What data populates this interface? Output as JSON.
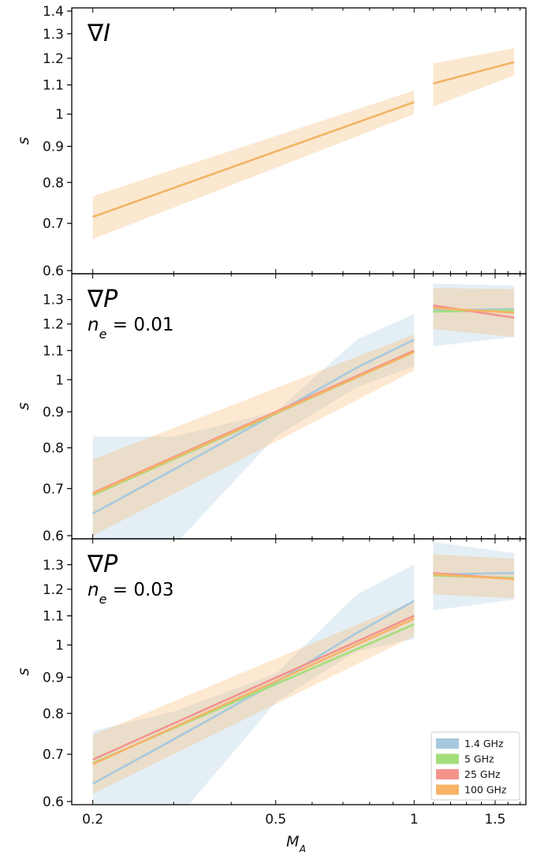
{
  "chart_data": [
    {
      "type": "line",
      "title": "∇I",
      "subtitle": "",
      "xlabel": "M_A",
      "ylabel": "s",
      "x_scale": "log",
      "y_scale": "log",
      "xlim": [
        0.18,
        1.75
      ],
      "ylim": [
        0.6,
        1.4
      ],
      "yticks": [
        0.6,
        0.7,
        0.8,
        0.9,
        1.0,
        1.1,
        1.2,
        1.3,
        1.4
      ],
      "ytick_labels": [
        "0.6",
        "0.7",
        "0.8",
        "0.9",
        "1",
        "1.1",
        "1.2",
        "1.3",
        "1.4"
      ],
      "series": [
        {
          "color": "#f2b366",
          "segments": [
            {
              "x": [
                0.2,
                1.0
              ],
              "y": [
                0.715,
                1.04
              ],
              "band_lo": [
                0.665,
                1.0
              ],
              "band_hi": [
                0.765,
                1.08
              ]
            },
            {
              "x": [
                1.1,
                1.65
              ],
              "y": [
                1.105,
                1.185
              ],
              "band_lo": [
                1.025,
                1.135
              ],
              "band_hi": [
                1.18,
                1.24
              ]
            }
          ]
        }
      ]
    },
    {
      "type": "line",
      "title": "∇P",
      "subtitle": "n_e = 0.01",
      "xlabel": "M_A",
      "ylabel": "s",
      "x_scale": "log",
      "y_scale": "log",
      "xlim": [
        0.18,
        1.75
      ],
      "ylim": [
        0.6,
        1.4
      ],
      "yticks": [
        0.6,
        0.7,
        0.8,
        0.9,
        1.0,
        1.1,
        1.2,
        1.3
      ],
      "ytick_labels": [
        "0.6",
        "0.7",
        "0.8",
        "0.9",
        "1",
        "1.1",
        "1.2",
        "1.3"
      ],
      "series": [
        {
          "name": "1.4 GHz",
          "color": "#a6c9df",
          "segments": [
            {
              "x": [
                0.2,
                0.3,
                0.5,
                0.75,
                1.0
              ],
              "y": [
                0.645,
                0.745,
                0.895,
                1.04,
                1.14
              ],
              "band_lo": [
                0.5,
                0.58,
                0.83,
                0.975,
                1.045
              ],
              "band_hi": [
                0.83,
                0.83,
                0.9,
                1.14,
                1.24
              ]
            },
            {
              "x": [
                1.1,
                1.65
              ],
              "y": [
                1.255,
                1.26
              ],
              "band_lo": [
                1.115,
                1.15
              ],
              "band_hi": [
                1.37,
                1.36
              ]
            }
          ]
        },
        {
          "name": "5 GHz",
          "color": "#a4de7c",
          "segments": [
            {
              "x": [
                0.2,
                1.0
              ],
              "y": [
                0.685,
                1.095
              ]
            },
            {
              "x": [
                1.1,
                1.65
              ],
              "y": [
                1.25,
                1.255
              ]
            }
          ]
        },
        {
          "name": "25 GHz",
          "color": "#f3938c",
          "segments": [
            {
              "x": [
                0.2,
                1.0
              ],
              "y": [
                0.69,
                1.1
              ]
            },
            {
              "x": [
                1.1,
                1.65
              ],
              "y": [
                1.275,
                1.225
              ]
            }
          ]
        },
        {
          "name": "100 GHz",
          "color": "#f7b366",
          "segments": [
            {
              "x": [
                0.2,
                1.0
              ],
              "y": [
                0.688,
                1.095
              ],
              "band_lo": [
                0.6,
                1.03
              ],
              "band_hi": [
                0.77,
                1.16
              ]
            },
            {
              "x": [
                1.1,
                1.65
              ],
              "y": [
                1.265,
                1.245
              ],
              "band_lo": [
                1.18,
                1.15
              ],
              "band_hi": [
                1.35,
                1.345
              ]
            }
          ]
        }
      ]
    },
    {
      "type": "line",
      "title": "∇P",
      "subtitle": "n_e = 0.03",
      "xlabel": "M_A",
      "ylabel": "s",
      "x_scale": "log",
      "y_scale": "log",
      "xlim": [
        0.18,
        1.75
      ],
      "ylim": [
        0.6,
        1.4
      ],
      "xticks": [
        0.2,
        0.5,
        1.0,
        1.5
      ],
      "xtick_labels": [
        "0.2",
        "0.5",
        "1",
        "1.5"
      ],
      "yticks": [
        0.6,
        0.7,
        0.8,
        0.9,
        1.0,
        1.1,
        1.2,
        1.3
      ],
      "ytick_labels": [
        "0.6",
        "0.7",
        "0.8",
        "0.9",
        "1",
        "1.1",
        "1.2",
        "1.3"
      ],
      "legend": "lower-right",
      "series": [
        {
          "name": "1.4 GHz",
          "color": "#a6c9df",
          "segments": [
            {
              "x": [
                0.2,
                0.3,
                0.5,
                0.75,
                1.0
              ],
              "y": [
                0.636,
                0.735,
                0.885,
                1.04,
                1.155
              ],
              "band_lo": [
                0.505,
                0.56,
                0.83,
                0.98,
                1.02
              ],
              "band_hi": [
                0.755,
                0.805,
                0.91,
                1.18,
                1.3
              ]
            },
            {
              "x": [
                1.1,
                1.65
              ],
              "y": [
                1.26,
                1.265
              ],
              "band_lo": [
                1.12,
                1.16
              ],
              "band_hi": [
                1.4,
                1.35
              ]
            }
          ]
        },
        {
          "name": "5 GHz",
          "color": "#a4de7c",
          "segments": [
            {
              "x": [
                0.2,
                1.0
              ],
              "y": [
                0.68,
                1.07
              ]
            },
            {
              "x": [
                1.1,
                1.65
              ],
              "y": [
                1.255,
                1.245
              ]
            }
          ]
        },
        {
          "name": "25 GHz",
          "color": "#f3938c",
          "segments": [
            {
              "x": [
                0.2,
                1.0
              ],
              "y": [
                0.688,
                1.1
              ]
            },
            {
              "x": [
                1.1,
                1.65
              ],
              "y": [
                1.265,
                1.24
              ]
            }
          ]
        },
        {
          "name": "100 GHz",
          "color": "#f7b366",
          "segments": [
            {
              "x": [
                0.2,
                1.0
              ],
              "y": [
                0.678,
                1.09
              ],
              "band_lo": [
                0.615,
                1.03
              ],
              "band_hi": [
                0.745,
                1.155
              ]
            },
            {
              "x": [
                1.1,
                1.65
              ],
              "y": [
                1.26,
                1.24
              ],
              "band_lo": [
                1.18,
                1.165
              ],
              "band_hi": [
                1.345,
                1.325
              ]
            }
          ]
        }
      ]
    }
  ]
}
